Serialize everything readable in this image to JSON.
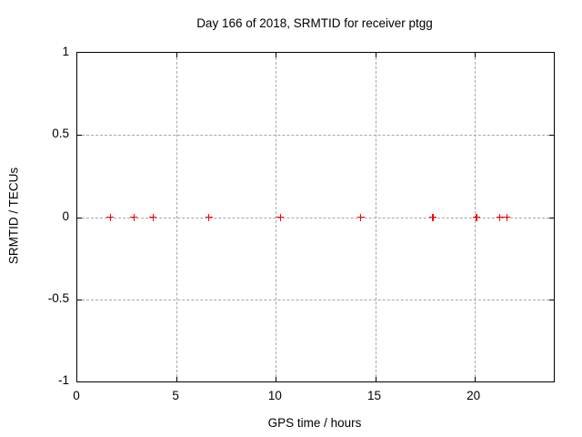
{
  "window": {
    "background": "#ffffff"
  },
  "chart_data": {
    "type": "scatter",
    "title": "Day 166 of 2018, SRMTID for receiver ptgg",
    "xlabel": "GPS time / hours",
    "ylabel": "SRMTID / TECUs",
    "xlim": [
      0,
      24
    ],
    "ylim": [
      -1,
      1
    ],
    "x_ticks": [
      0,
      5,
      10,
      15,
      20
    ],
    "x_tick_labels": [
      "0",
      "5",
      "10",
      "15",
      "20"
    ],
    "y_ticks": [
      -1,
      -0.5,
      0,
      0.5,
      1
    ],
    "y_tick_labels": [
      "-1",
      "-0.5",
      "0",
      "0.5",
      "1"
    ],
    "grid": true,
    "legend": "none",
    "marker": "plus",
    "colors": {
      "marker": "#ff0000",
      "grid": "#a6a6a6",
      "axis": "#000000",
      "background": "#ffffff"
    },
    "series": [
      {
        "name": "SRMTID",
        "x": [
          1.67,
          2.86,
          3.82,
          6.62,
          10.23,
          14.27,
          17.9,
          20.1,
          21.28,
          21.64
        ],
        "y": [
          0,
          0,
          0,
          0,
          0,
          0,
          0,
          0,
          0,
          0
        ]
      }
    ]
  }
}
